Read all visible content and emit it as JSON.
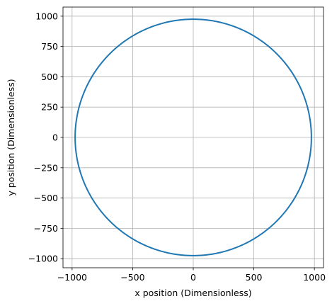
{
  "chart_data": {
    "type": "line",
    "title": "",
    "xlabel": "x position (Dimensionless)",
    "ylabel": "y position (Dimensionless)",
    "xlim": [
      -1075,
      1075
    ],
    "ylim": [
      -1075,
      1075
    ],
    "x_ticks": [
      -1000,
      -500,
      0,
      500,
      1000
    ],
    "y_ticks": [
      -1000,
      -750,
      -500,
      -250,
      0,
      250,
      500,
      750,
      1000
    ],
    "x_tick_labels": [
      "−1000",
      "−500",
      "0",
      "500",
      "1000"
    ],
    "y_tick_labels": [
      "−1000",
      "−750",
      "−500",
      "−250",
      "0",
      "250",
      "500",
      "750",
      "1000"
    ],
    "grid": true,
    "series": [
      {
        "color": "#1f77b4",
        "shape": "circle",
        "center": [
          0,
          0
        ],
        "radius": 975
      }
    ]
  }
}
